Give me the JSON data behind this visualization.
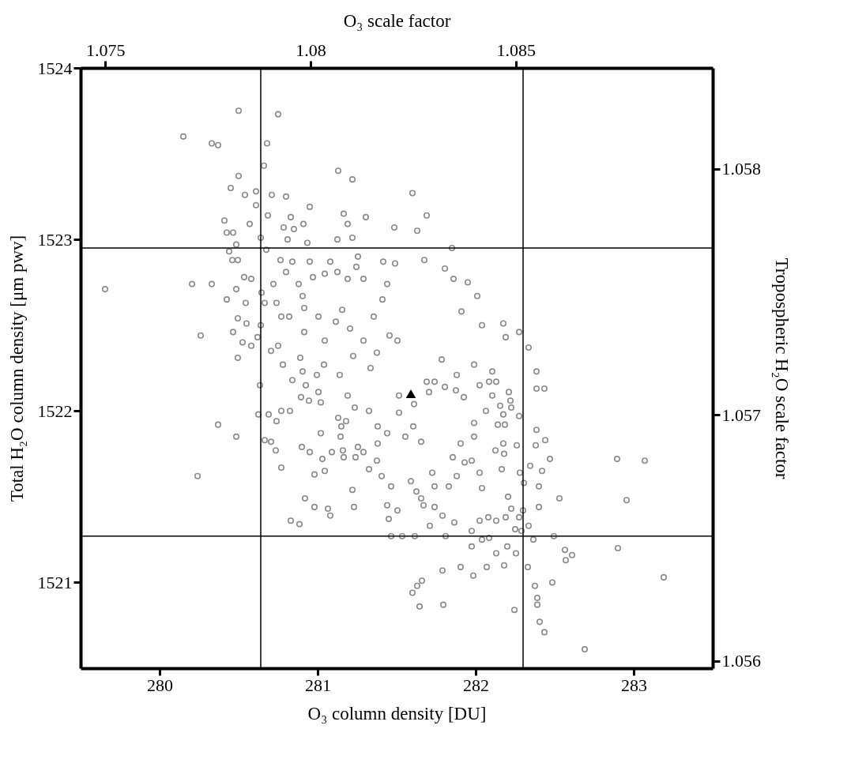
{
  "chart_data": {
    "type": "scatter",
    "xlabel": "O₃ column density [DU]",
    "ylabel": "Total H₂O column density [μm pwv]",
    "x2label": "O₃ scale factor",
    "y2label": "Tropospheric H₂O scale factor",
    "xlim": [
      279.5,
      283.5
    ],
    "xticks": [
      280,
      281,
      282,
      283
    ],
    "ylim": [
      1520.5,
      1524
    ],
    "yticks": [
      1521,
      1522,
      1523,
      1524
    ],
    "x2lim": [
      1.0744,
      1.0898
    ],
    "x2ticks": [
      1.075,
      1.08,
      1.085
    ],
    "y2lim": [
      1.05597,
      1.05841
    ],
    "y2ticks": [
      1.056,
      1.057,
      1.058
    ],
    "grid": false,
    "ref_lines": [
      {
        "axis": "x",
        "value": 280.64,
        "color": "#000000"
      },
      {
        "axis": "x",
        "value": 282.3,
        "color": "#000000"
      },
      {
        "axis": "y",
        "value": 1522.95,
        "color": "#000000"
      },
      {
        "axis": "y",
        "value": 1521.27,
        "color": "#000000"
      }
    ],
    "series": [
      {
        "color": "#8c8c8c",
        "marker": "circle",
        "x": [
          279.655,
          280.15,
          280.33,
          280.37,
          280.5,
          280.75,
          280.68,
          280.66,
          280.5,
          280.45,
          280.54,
          280.71,
          280.8,
          281.13,
          281.22,
          280.95,
          281.6,
          281.69,
          281.63,
          280.205,
          280.33,
          280.26,
          280.24,
          280.37,
          280.485,
          280.625,
          280.83,
          280.885,
          281.22,
          281.23,
          281.6,
          281.63,
          281.66,
          281.645,
          281.795,
          281.79,
          281.905,
          281.985,
          282.07,
          282.18,
          282.245,
          282.335,
          282.365,
          282.33,
          282.375,
          282.39,
          282.39,
          282.405,
          282.435,
          282.69,
          282.485,
          282.57,
          282.61,
          282.565,
          282.495,
          282.9,
          283.19,
          282.895,
          283.07,
          282.955,
          282.385,
          282.38,
          282.44,
          282.47,
          282.42,
          282.4,
          282.53,
          282.4,
          282.345,
          282.385,
          282.385,
          282.435,
          282.275,
          282.335,
          281.85,
          281.675,
          281.805,
          281.86,
          281.95,
          282.01,
          281.91,
          282.04,
          282.175,
          282.19,
          280.61,
          280.61,
          281.305,
          281.485,
          281.165,
          281.19,
          281.22,
          281.125,
          280.91,
          280.85,
          280.785,
          280.83,
          280.685,
          280.57,
          280.41,
          280.425,
          280.465,
          280.485,
          280.44,
          280.46,
          280.495,
          280.64,
          280.675,
          280.81,
          280.935,
          280.765,
          280.8,
          280.84,
          280.95,
          281.045,
          281.08,
          281.125,
          281.255,
          281.245,
          281.415,
          281.49,
          280.535,
          280.58,
          280.485,
          280.425,
          280.545,
          280.645,
          280.665,
          280.72,
          280.88,
          280.97,
          280.905,
          281.19,
          281.29,
          281.44,
          281.41,
          280.495,
          280.55,
          280.465,
          280.525,
          280.58,
          280.495,
          280.62,
          280.64,
          280.74,
          280.77,
          280.82,
          280.75,
          280.705,
          280.915,
          281.005,
          280.915,
          281.045,
          281.115,
          281.155,
          281.205,
          281.29,
          281.355,
          281.455,
          281.505,
          281.225,
          281.375,
          281.335,
          280.78,
          280.89,
          281.04,
          280.635,
          280.69,
          280.74,
          280.77,
          280.825,
          280.665,
          280.705,
          280.735,
          280.77,
          280.84,
          280.895,
          280.945,
          281.02,
          281.005,
          280.995,
          280.905,
          280.925,
          281.14,
          281.19,
          281.235,
          281.13,
          281.18,
          281.15,
          281.145,
          281.16,
          281.165,
          281.02,
          280.9,
          280.95,
          281.03,
          281.045,
          280.98,
          281.09,
          281.255,
          281.24,
          281.29,
          281.325,
          281.375,
          280.92,
          280.98,
          281.065,
          281.08,
          281.325,
          281.38,
          281.44,
          281.38,
          281.405,
          281.465,
          281.44,
          281.505,
          281.45,
          281.465,
          281.515,
          281.61,
          281.515,
          281.605,
          281.555,
          281.655,
          281.69,
          281.705,
          281.805,
          281.875,
          281.925,
          281.99,
          281.88,
          281.74,
          281.785,
          282.105,
          282.025,
          282.085,
          282.13,
          282.105,
          282.21,
          282.22,
          282.225,
          282.155,
          282.175,
          282.065,
          281.99,
          282.14,
          282.185,
          282.175,
          282.26,
          282.18,
          282.125,
          281.99,
          281.905,
          281.855,
          281.975,
          282.025,
          281.88,
          281.93,
          281.725,
          281.74,
          281.83,
          281.67,
          281.74,
          281.79,
          281.865,
          281.81,
          281.615,
          281.535,
          281.655,
          281.59,
          281.625,
          281.71,
          282.04,
          282.165,
          282.205,
          282.225,
          282.025,
          281.975,
          282.04,
          282.13,
          282.255,
          282.2,
          281.975,
          282.085,
          282.29,
          282.25,
          282.275,
          282.3,
          282.305,
          282.28,
          282.275,
          282.19,
          282.13,
          282.08
        ],
        "values": [
          1522.71,
          1523.6,
          1523.56,
          1523.55,
          1523.75,
          1523.73,
          1523.56,
          1523.43,
          1523.37,
          1523.3,
          1523.26,
          1523.26,
          1523.25,
          1523.4,
          1523.35,
          1523.19,
          1523.27,
          1523.14,
          1523.05,
          1522.74,
          1522.74,
          1522.44,
          1521.62,
          1521.92,
          1521.85,
          1521.98,
          1521.36,
          1521.34,
          1521.54,
          1521.44,
          1520.94,
          1520.98,
          1521.01,
          1520.86,
          1520.87,
          1521.07,
          1521.09,
          1521.04,
          1521.09,
          1521.1,
          1520.84,
          1521.33,
          1521.25,
          1521.09,
          1520.98,
          1520.91,
          1520.87,
          1520.77,
          1520.71,
          1520.61,
          1521.0,
          1521.13,
          1521.16,
          1521.19,
          1521.27,
          1521.2,
          1521.03,
          1521.72,
          1521.71,
          1521.48,
          1521.89,
          1521.8,
          1521.83,
          1521.72,
          1521.65,
          1521.56,
          1521.49,
          1521.44,
          1521.68,
          1522.23,
          1522.13,
          1522.13,
          1522.46,
          1522.37,
          1522.95,
          1522.88,
          1522.83,
          1522.77,
          1522.75,
          1522.67,
          1522.58,
          1522.5,
          1522.51,
          1522.43,
          1523.28,
          1523.2,
          1523.13,
          1523.07,
          1523.15,
          1523.09,
          1523.01,
          1523.0,
          1523.09,
          1523.06,
          1523.07,
          1523.13,
          1523.14,
          1523.09,
          1523.11,
          1523.04,
          1523.04,
          1522.97,
          1522.93,
          1522.88,
          1522.88,
          1523.01,
          1522.94,
          1523.0,
          1522.98,
          1522.88,
          1522.81,
          1522.87,
          1522.87,
          1522.8,
          1522.87,
          1522.81,
          1522.9,
          1522.84,
          1522.87,
          1522.86,
          1522.78,
          1522.77,
          1522.71,
          1522.65,
          1522.63,
          1522.69,
          1522.63,
          1522.74,
          1522.74,
          1522.78,
          1522.67,
          1522.77,
          1522.77,
          1522.74,
          1522.65,
          1522.54,
          1522.51,
          1522.46,
          1522.4,
          1522.38,
          1522.31,
          1522.43,
          1522.5,
          1522.63,
          1522.55,
          1522.55,
          1522.38,
          1522.35,
          1522.6,
          1522.55,
          1522.46,
          1522.41,
          1522.52,
          1522.59,
          1522.48,
          1522.41,
          1522.55,
          1522.44,
          1522.41,
          1522.32,
          1522.34,
          1522.25,
          1522.27,
          1522.31,
          1522.27,
          1522.15,
          1521.98,
          1521.94,
          1522.0,
          1522.0,
          1521.83,
          1521.82,
          1521.77,
          1521.67,
          1522.18,
          1522.08,
          1522.06,
          1522.05,
          1522.11,
          1522.21,
          1522.23,
          1522.15,
          1522.21,
          1522.09,
          1522.02,
          1521.96,
          1521.94,
          1521.91,
          1521.85,
          1521.77,
          1521.73,
          1521.87,
          1521.79,
          1521.76,
          1521.72,
          1521.65,
          1521.63,
          1521.76,
          1521.79,
          1521.73,
          1521.76,
          1521.66,
          1521.71,
          1521.49,
          1521.44,
          1521.43,
          1521.39,
          1522.0,
          1521.91,
          1521.87,
          1521.81,
          1521.62,
          1521.56,
          1521.45,
          1521.42,
          1521.37,
          1521.27,
          1522.09,
          1522.04,
          1521.99,
          1521.91,
          1521.85,
          1521.82,
          1522.17,
          1522.11,
          1522.14,
          1522.12,
          1522.08,
          1522.27,
          1522.21,
          1522.17,
          1522.3,
          1522.23,
          1522.15,
          1522.17,
          1522.17,
          1522.09,
          1522.11,
          1522.06,
          1522.02,
          1522.03,
          1521.98,
          1522.0,
          1521.93,
          1521.92,
          1521.92,
          1521.81,
          1521.8,
          1521.75,
          1521.77,
          1521.85,
          1521.81,
          1521.73,
          1521.71,
          1521.64,
          1521.62,
          1521.7,
          1521.64,
          1521.56,
          1521.56,
          1521.45,
          1521.44,
          1521.39,
          1521.35,
          1521.27,
          1521.27,
          1521.27,
          1521.49,
          1521.59,
          1521.53,
          1521.33,
          1521.55,
          1521.66,
          1521.5,
          1521.43,
          1521.36,
          1521.3,
          1521.25,
          1521.17,
          1521.17,
          1521.21,
          1521.21,
          1521.26,
          1521.3,
          1521.31,
          1521.38,
          1521.42,
          1521.58,
          1521.64,
          1521.97,
          1521.38,
          1521.36,
          1521.38
        ]
      },
      {
        "color": "#000000",
        "marker": "triangle",
        "x": [
          281.59
        ],
        "values": [
          1522.1
        ]
      }
    ]
  }
}
